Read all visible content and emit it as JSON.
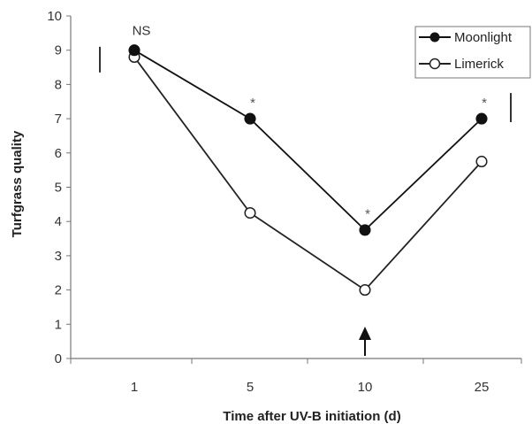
{
  "chart_data": {
    "type": "line",
    "title": "",
    "xlabel": "Time after UV-B initiation (d)",
    "ylabel": "Turfgrass quality",
    "categories": [
      "1",
      "5",
      "10",
      "25"
    ],
    "ylim": [
      0,
      10
    ],
    "yticks": [
      "0",
      "1",
      "2",
      "3",
      "4",
      "5",
      "6",
      "7",
      "8",
      "9",
      "10"
    ],
    "series": [
      {
        "name": "Moonlight",
        "marker": "filled-circle",
        "values": [
          9.0,
          7.0,
          3.75,
          7.0
        ]
      },
      {
        "name": "Limerick",
        "marker": "open-circle",
        "values": [
          8.8,
          4.25,
          2.0,
          5.75
        ]
      }
    ],
    "annotations": [
      {
        "text": "NS",
        "category": "1",
        "y": 9.45
      },
      {
        "text": "*",
        "category": "5",
        "y": 7.55
      },
      {
        "text": "*",
        "category": "10",
        "y": 4.3
      },
      {
        "text": "*",
        "category": "25",
        "y": 7.55
      }
    ],
    "error_bars": [
      {
        "position": "left",
        "y_low": 8.35,
        "y_high": 9.1
      },
      {
        "position": "right",
        "y_low": 6.9,
        "y_high": 7.75
      }
    ],
    "arrow_at_category": "10",
    "legend": {
      "placement": "top-right"
    },
    "grid": false,
    "colors": {
      "moonlight": "#111111",
      "limerick": "#222222",
      "axis": "#777777",
      "text": "#333333"
    }
  }
}
